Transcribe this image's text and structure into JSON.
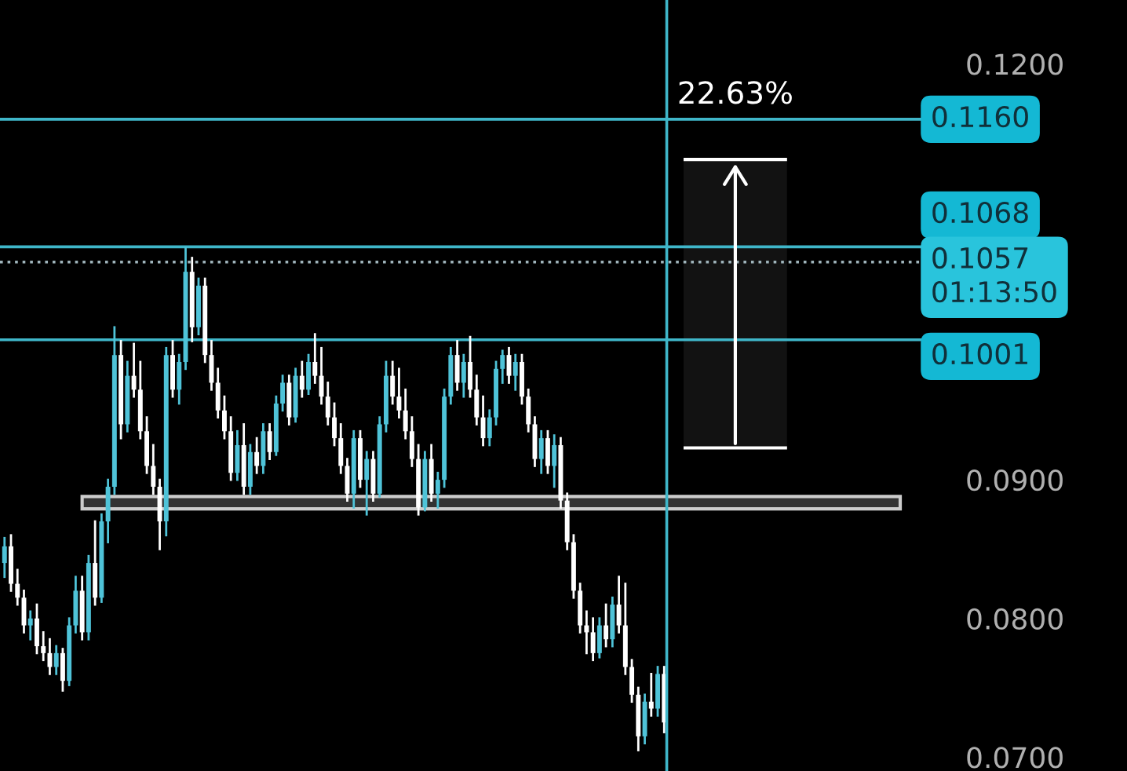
{
  "chart_data": {
    "type": "candlestick",
    "categories": [
      null,
      null,
      null,
      null,
      null,
      null,
      null,
      null,
      null,
      null,
      null,
      null,
      null,
      null,
      null,
      null,
      null,
      null,
      null,
      null,
      null,
      null,
      null,
      null,
      null,
      null,
      null,
      null,
      null,
      null,
      null,
      null,
      null,
      null,
      null,
      null,
      null,
      null,
      null,
      null,
      null,
      null,
      null,
      null,
      null,
      null,
      null,
      null,
      null,
      null,
      null,
      null,
      null,
      null,
      null,
      null,
      null,
      null,
      null,
      null,
      null,
      null,
      null,
      null,
      null,
      null,
      null,
      null,
      null,
      null,
      null,
      null,
      null,
      null,
      null,
      null,
      null,
      null,
      null,
      null,
      null,
      null,
      null,
      null,
      null,
      null,
      null,
      null,
      null,
      null,
      null,
      null,
      null,
      null,
      null,
      null,
      null,
      null,
      null,
      null,
      null,
      null,
      null,
      null,
      null,
      null,
      null,
      null,
      null,
      null,
      null,
      null,
      null,
      null,
      null,
      null,
      null,
      null,
      null,
      null,
      null,
      null,
      null,
      null,
      null,
      null,
      null,
      null,
      null,
      null,
      null,
      null,
      null,
      null,
      null,
      null,
      null,
      null,
      null,
      null,
      null,
      null,
      null
    ],
    "ohlc": [
      [
        0.084,
        0.0858,
        0.083,
        0.0852
      ],
      [
        0.0852,
        0.086,
        0.082,
        0.0825
      ],
      [
        0.0825,
        0.0835,
        0.081,
        0.0815
      ],
      [
        0.0815,
        0.082,
        0.079,
        0.0795
      ],
      [
        0.0795,
        0.0805,
        0.0785,
        0.08
      ],
      [
        0.08,
        0.081,
        0.0775,
        0.078
      ],
      [
        0.078,
        0.079,
        0.077,
        0.0775
      ],
      [
        0.0775,
        0.0785,
        0.076,
        0.0765
      ],
      [
        0.0765,
        0.078,
        0.076,
        0.0775
      ],
      [
        0.0775,
        0.0778,
        0.0748,
        0.0755
      ],
      [
        0.0755,
        0.08,
        0.0752,
        0.0795
      ],
      [
        0.0795,
        0.083,
        0.079,
        0.082
      ],
      [
        0.082,
        0.083,
        0.0785,
        0.079
      ],
      [
        0.079,
        0.0845,
        0.0785,
        0.084
      ],
      [
        0.084,
        0.087,
        0.081,
        0.0815
      ],
      [
        0.0815,
        0.0875,
        0.0812,
        0.087
      ],
      [
        0.087,
        0.09,
        0.0855,
        0.0895
      ],
      [
        0.0895,
        0.101,
        0.089,
        0.099
      ],
      [
        0.099,
        0.1,
        0.093,
        0.094
      ],
      [
        0.094,
        0.0985,
        0.0935,
        0.0975
      ],
      [
        0.0975,
        0.0998,
        0.096,
        0.0965
      ],
      [
        0.0965,
        0.0985,
        0.093,
        0.0935
      ],
      [
        0.0935,
        0.0945,
        0.0905,
        0.091
      ],
      [
        0.091,
        0.0925,
        0.089,
        0.0895
      ],
      [
        0.0895,
        0.09,
        0.085,
        0.087
      ],
      [
        0.087,
        0.0995,
        0.086,
        0.099
      ],
      [
        0.099,
        0.1,
        0.096,
        0.0965
      ],
      [
        0.0965,
        0.099,
        0.0955,
        0.0985
      ],
      [
        0.0985,
        0.1067,
        0.098,
        0.105
      ],
      [
        0.105,
        0.106,
        0.1,
        0.101
      ],
      [
        0.101,
        0.1045,
        0.1005,
        0.104
      ],
      [
        0.104,
        0.1045,
        0.0985,
        0.099
      ],
      [
        0.099,
        0.1,
        0.0965,
        0.097
      ],
      [
        0.097,
        0.098,
        0.0945,
        0.095
      ],
      [
        0.095,
        0.096,
        0.093,
        0.0935
      ],
      [
        0.0935,
        0.0945,
        0.09,
        0.0905
      ],
      [
        0.0905,
        0.0935,
        0.09,
        0.0925
      ],
      [
        0.0925,
        0.094,
        0.089,
        0.0895
      ],
      [
        0.0895,
        0.0925,
        0.089,
        0.092
      ],
      [
        0.092,
        0.093,
        0.0905,
        0.091
      ],
      [
        0.091,
        0.094,
        0.0905,
        0.0935
      ],
      [
        0.0935,
        0.094,
        0.0915,
        0.092
      ],
      [
        0.092,
        0.096,
        0.0918,
        0.0955
      ],
      [
        0.0955,
        0.0975,
        0.095,
        0.097
      ],
      [
        0.097,
        0.0975,
        0.094,
        0.0945
      ],
      [
        0.0945,
        0.098,
        0.0942,
        0.0975
      ],
      [
        0.0975,
        0.0985,
        0.096,
        0.0965
      ],
      [
        0.0965,
        0.099,
        0.0962,
        0.0985
      ],
      [
        0.0985,
        0.1005,
        0.097,
        0.0975
      ],
      [
        0.0975,
        0.0995,
        0.0955,
        0.096
      ],
      [
        0.096,
        0.097,
        0.094,
        0.0945
      ],
      [
        0.0945,
        0.0955,
        0.0925,
        0.093
      ],
      [
        0.093,
        0.094,
        0.0905,
        0.091
      ],
      [
        0.091,
        0.0915,
        0.0885,
        0.089
      ],
      [
        0.089,
        0.0935,
        0.088,
        0.093
      ],
      [
        0.093,
        0.0935,
        0.0895,
        0.09
      ],
      [
        0.09,
        0.092,
        0.0875,
        0.0915
      ],
      [
        0.0915,
        0.092,
        0.0885,
        0.089
      ],
      [
        0.089,
        0.0945,
        0.0888,
        0.094
      ],
      [
        0.094,
        0.0985,
        0.0935,
        0.0975
      ],
      [
        0.0975,
        0.0985,
        0.0955,
        0.096
      ],
      [
        0.096,
        0.098,
        0.0945,
        0.095
      ],
      [
        0.095,
        0.0965,
        0.093,
        0.0935
      ],
      [
        0.0935,
        0.0945,
        0.091,
        0.0915
      ],
      [
        0.0915,
        0.0925,
        0.0875,
        0.088
      ],
      [
        0.088,
        0.092,
        0.0878,
        0.0915
      ],
      [
        0.0915,
        0.0925,
        0.0885,
        0.089
      ],
      [
        0.089,
        0.0905,
        0.088,
        0.09
      ],
      [
        0.09,
        0.0965,
        0.0895,
        0.096
      ],
      [
        0.096,
        0.0995,
        0.0955,
        0.099
      ],
      [
        0.099,
        0.1,
        0.0965,
        0.097
      ],
      [
        0.097,
        0.099,
        0.096,
        0.0985
      ],
      [
        0.0985,
        0.1003,
        0.096,
        0.0965
      ],
      [
        0.0965,
        0.0975,
        0.094,
        0.0945
      ],
      [
        0.0945,
        0.096,
        0.0925,
        0.093
      ],
      [
        0.093,
        0.095,
        0.0925,
        0.0945
      ],
      [
        0.0945,
        0.0985,
        0.094,
        0.098
      ],
      [
        0.098,
        0.0993,
        0.097,
        0.099
      ],
      [
        0.099,
        0.0995,
        0.097,
        0.0975
      ],
      [
        0.0975,
        0.099,
        0.0965,
        0.0985
      ],
      [
        0.0985,
        0.099,
        0.0955,
        0.096
      ],
      [
        0.096,
        0.0965,
        0.0935,
        0.094
      ],
      [
        0.094,
        0.0945,
        0.091,
        0.0915
      ],
      [
        0.0915,
        0.0935,
        0.0905,
        0.093
      ],
      [
        0.093,
        0.0935,
        0.0905,
        0.091
      ],
      [
        0.091,
        0.0932,
        0.0895,
        0.0925
      ],
      [
        0.0925,
        0.093,
        0.088,
        0.0885
      ],
      [
        0.0885,
        0.089,
        0.085,
        0.0855
      ],
      [
        0.0855,
        0.086,
        0.0815,
        0.082
      ],
      [
        0.082,
        0.0825,
        0.079,
        0.0795
      ],
      [
        0.0795,
        0.0805,
        0.0775,
        0.079
      ],
      [
        0.079,
        0.08,
        0.077,
        0.0775
      ],
      [
        0.0775,
        0.08,
        0.0772,
        0.0795
      ],
      [
        0.0795,
        0.081,
        0.078,
        0.0785
      ],
      [
        0.0785,
        0.0815,
        0.078,
        0.081
      ],
      [
        0.081,
        0.083,
        0.079,
        0.0795
      ],
      [
        0.0795,
        0.0825,
        0.076,
        0.0765
      ],
      [
        0.0765,
        0.077,
        0.074,
        0.0745
      ],
      [
        0.0745,
        0.075,
        0.0705,
        0.0715
      ],
      [
        0.0715,
        0.0745,
        0.071,
        0.074
      ],
      [
        0.074,
        0.076,
        0.073,
        0.0735
      ],
      [
        0.0735,
        0.0765,
        0.073,
        0.076
      ],
      [
        0.076,
        0.0765,
        0.0718,
        0.0725
      ],
      null,
      null,
      null,
      null,
      null,
      null,
      null,
      null,
      null,
      null,
      null,
      null,
      null,
      null,
      null,
      null,
      null,
      null,
      null,
      null,
      null,
      null,
      null,
      null,
      null,
      null,
      null,
      null,
      null,
      null,
      null,
      null,
      null,
      null,
      null,
      null,
      null,
      null,
      null,
      null
    ],
    "colors": [
      "#4fc3d8",
      "#ffffff",
      "#ffffff",
      "#ffffff",
      "#4fc3d8",
      "#ffffff",
      "#ffffff",
      "#ffffff",
      "#4fc3d8",
      "#ffffff",
      "#4fc3d8",
      "#4fc3d8",
      "#ffffff",
      "#4fc3d8",
      "#ffffff",
      "#4fc3d8",
      "#4fc3d8",
      "#4fc3d8",
      "#ffffff",
      "#4fc3d8",
      "#ffffff",
      "#ffffff",
      "#ffffff",
      "#ffffff",
      "#ffffff",
      "#4fc3d8",
      "#ffffff",
      "#4fc3d8",
      "#4fc3d8",
      "#ffffff",
      "#4fc3d8",
      "#ffffff",
      "#ffffff",
      "#ffffff",
      "#ffffff",
      "#ffffff",
      "#4fc3d8",
      "#ffffff",
      "#4fc3d8",
      "#ffffff",
      "#4fc3d8",
      "#ffffff",
      "#4fc3d8",
      "#4fc3d8",
      "#ffffff",
      "#4fc3d8",
      "#ffffff",
      "#4fc3d8",
      "#ffffff",
      "#ffffff",
      "#ffffff",
      "#ffffff",
      "#ffffff",
      "#ffffff",
      "#4fc3d8",
      "#ffffff",
      "#4fc3d8",
      "#ffffff",
      "#4fc3d8",
      "#4fc3d8",
      "#ffffff",
      "#ffffff",
      "#ffffff",
      "#ffffff",
      "#ffffff",
      "#4fc3d8",
      "#ffffff",
      "#4fc3d8",
      "#4fc3d8",
      "#4fc3d8",
      "#ffffff",
      "#4fc3d8",
      "#ffffff",
      "#ffffff",
      "#ffffff",
      "#4fc3d8",
      "#4fc3d8",
      "#4fc3d8",
      "#ffffff",
      "#4fc3d8",
      "#ffffff",
      "#ffffff",
      "#ffffff",
      "#4fc3d8",
      "#ffffff",
      "#4fc3d8",
      "#ffffff",
      "#ffffff",
      "#ffffff",
      "#ffffff",
      "#ffffff",
      "#ffffff",
      "#4fc3d8",
      "#ffffff",
      "#4fc3d8",
      "#ffffff",
      "#ffffff",
      "#ffffff",
      "#ffffff",
      "#4fc3d8",
      "#ffffff",
      "#4fc3d8",
      "#ffffff",
      null,
      null,
      null,
      null,
      null,
      null,
      null,
      null,
      null,
      null,
      null,
      null,
      null,
      null,
      null,
      null,
      null,
      null,
      null,
      null,
      null,
      null,
      null,
      null,
      null,
      null,
      null,
      null,
      null,
      null,
      null,
      null,
      null,
      null,
      null,
      null,
      null,
      null,
      null,
      null
    ],
    "ylim": [
      0.069,
      0.1246
    ],
    "yticks": [
      {
        "value": 0.12,
        "label": "0.1200"
      },
      {
        "value": 0.09,
        "label": "0.0900"
      },
      {
        "value": 0.08,
        "label": "0.0800"
      },
      {
        "value": 0.07,
        "label": "0.0700"
      }
    ],
    "ref_lines": [
      {
        "axis": "y",
        "value": 0.116,
        "label": "0.1160",
        "color": "#3fb6c9"
      },
      {
        "axis": "y",
        "value": 0.1068,
        "label": "0.1068",
        "color": "#3fb6c9"
      },
      {
        "axis": "y",
        "value": 0.1057,
        "label": "0.1057\n01:13:50",
        "color": "#9fb4bb",
        "line_style": "dotted"
      },
      {
        "axis": "y",
        "value": 0.1001,
        "label": "0.1001",
        "color": "#3fb6c9"
      }
    ],
    "bands": [
      {
        "axis": "y",
        "from": 0.0879,
        "to": 0.0888,
        "color": "#333333"
      },
      {
        "axis": "y",
        "from": 0.0923,
        "to": 0.1131,
        "label": "22.63%",
        "color": "#ffffff"
      }
    ],
    "grid": false
  }
}
